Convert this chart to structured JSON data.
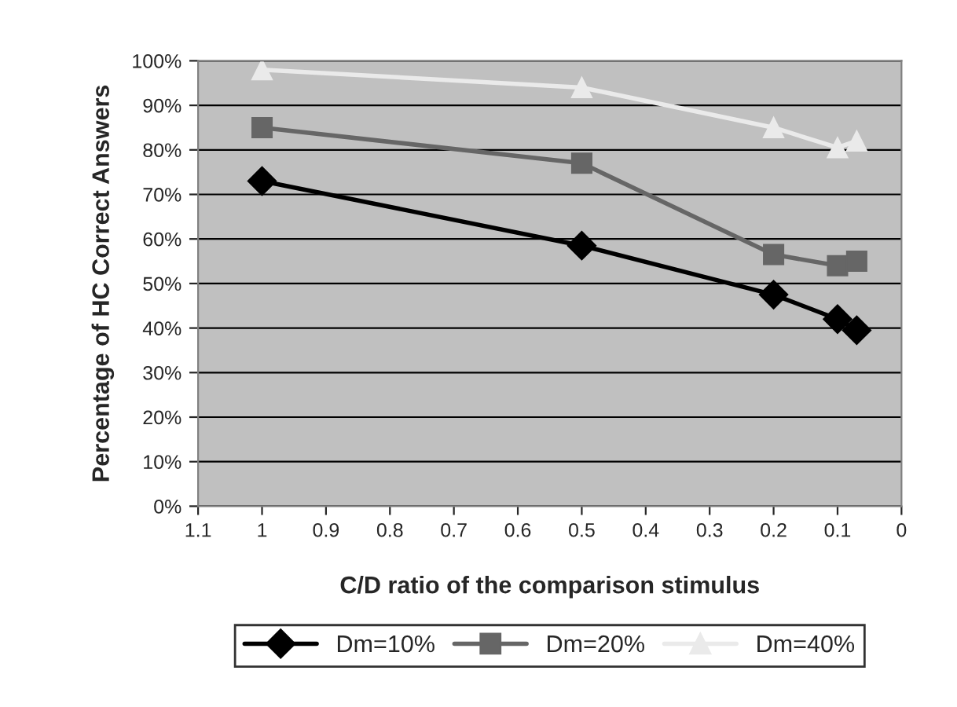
{
  "chart_data": {
    "type": "line",
    "xlabel": "C/D ratio of the comparison stimulus",
    "ylabel": "Percentage of HC Correct Answers",
    "x": [
      1,
      0.5,
      0.2,
      0.1,
      0.07
    ],
    "series": [
      {
        "name": "Dm=10%",
        "color": "#000000",
        "marker": "diamond",
        "values": [
          73,
          58.5,
          47.5,
          42,
          39.5
        ]
      },
      {
        "name": "Dm=20%",
        "color": "#666666",
        "marker": "square",
        "values": [
          85,
          77,
          56.5,
          54,
          55
        ]
      },
      {
        "name": "Dm=40%",
        "color": "#eaeaea",
        "marker": "triangle",
        "values": [
          98,
          94,
          85,
          80.5,
          82
        ]
      }
    ],
    "xlim": [
      1.1,
      0
    ],
    "xticks": [
      1.1,
      1,
      0.9,
      0.8,
      0.7,
      0.6,
      0.5,
      0.4,
      0.3,
      0.2,
      0.1,
      0
    ],
    "ylim": [
      0,
      100
    ],
    "yticks": [
      {
        "value": 0,
        "label": "0%"
      },
      {
        "value": 10,
        "label": "10%"
      },
      {
        "value": 20,
        "label": "20%"
      },
      {
        "value": 30,
        "label": "30%"
      },
      {
        "value": 40,
        "label": "40%"
      },
      {
        "value": 50,
        "label": "50%"
      },
      {
        "value": 60,
        "label": "60%"
      },
      {
        "value": 70,
        "label": "70%"
      },
      {
        "value": 80,
        "label": "80%"
      },
      {
        "value": 90,
        "label": "90%"
      },
      {
        "value": 100,
        "label": "100%"
      }
    ],
    "grid": "y",
    "legend": "bottom",
    "line_style": "solid"
  }
}
